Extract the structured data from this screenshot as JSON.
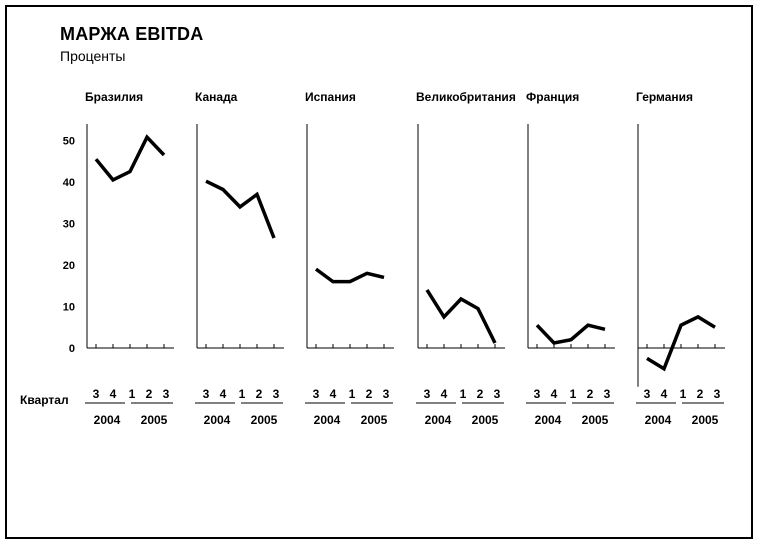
{
  "chart_data": {
    "type": "line",
    "title": "МАРЖА EBITDA",
    "subtitle": "Проценты",
    "xlabel": "Квартал",
    "ylabel": "",
    "ylim": [
      -10,
      55
    ],
    "yticks": [
      "50",
      "40",
      "30",
      "20",
      "10",
      "0"
    ],
    "categories": [
      "3",
      "4",
      "1",
      "2",
      "3"
    ],
    "years": [
      "2004",
      "2005"
    ],
    "grid": false,
    "series": [
      {
        "name": "Бразилия",
        "values": [
          45.5,
          40.5,
          42.5,
          50.8,
          46.5
        ]
      },
      {
        "name": "Канада",
        "values": [
          40.2,
          38.2,
          34.0,
          37.0,
          26.5
        ]
      },
      {
        "name": "Испания",
        "values": [
          19.0,
          16.0,
          16.0,
          18.0,
          17.0
        ]
      },
      {
        "name": "Великобритания",
        "values": [
          14.0,
          7.5,
          11.8,
          9.5,
          1.2
        ]
      },
      {
        "name": "Франция",
        "values": [
          5.5,
          1.2,
          2.0,
          5.5,
          4.5
        ]
      },
      {
        "name": "Германия",
        "values": [
          -2.5,
          -5.0,
          5.5,
          7.5,
          5.0
        ]
      }
    ]
  }
}
